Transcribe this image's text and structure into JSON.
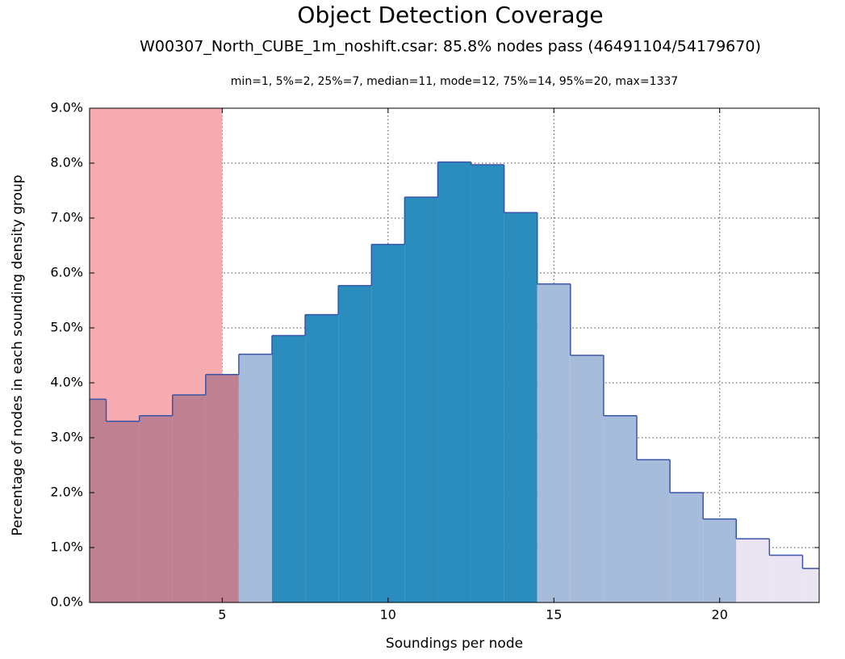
{
  "chart_data": {
    "type": "histogram",
    "title": "Object Detection Coverage",
    "subtitle": "W00307_North_CUBE_1m_noshift.csar: 85.8% nodes pass (46491104/54179670)",
    "annotation": "min=1, 5%=2, 25%=7, median=11, mode=12, 75%=14, 95%=20, max=1337",
    "x_label": "Soundings per node",
    "y_label": "Percentage of nodes in each sounding density group",
    "bins": [
      0.5,
      1.5,
      2.5,
      3.5,
      4.5,
      5.5,
      6.5,
      7.5,
      8.5,
      9.5,
      10.5,
      11.5,
      12.5,
      13.5,
      14.5,
      15.5,
      16.5,
      17.5,
      18.5,
      19.5,
      20.5,
      21.5,
      22.5,
      23.5
    ],
    "values": [
      3.7,
      3.3,
      3.4,
      3.78,
      4.15,
      4.52,
      4.86,
      5.24,
      5.77,
      6.52,
      7.38,
      8.02,
      7.97,
      7.1,
      5.8,
      4.5,
      3.4,
      2.6,
      2.0,
      1.52,
      1.16,
      0.86,
      0.62
    ],
    "colors": [
      "#bf8191",
      "#bf8191",
      "#bf8191",
      "#bf8191",
      "#bf8191",
      "#a7bcdb",
      "#2b8cbe",
      "#2b8cbe",
      "#2b8cbe",
      "#2b8cbe",
      "#2b8cbe",
      "#2b8cbe",
      "#2b8cbe",
      "#2b8cbe",
      "#a7bcdb",
      "#a7bcdb",
      "#a7bcdb",
      "#a7bcdb",
      "#a7bcdb",
      "#a7bcdb",
      "#ebe4f2",
      "#ebe4f2",
      "#ebe4f2"
    ],
    "edge_color": "#3a55a8",
    "highlight": {
      "range": [
        1,
        5
      ],
      "color": "#f6abb1"
    },
    "xlim": [
      1,
      23
    ],
    "ylim": [
      0,
      9
    ],
    "xticks": [
      5,
      10,
      15,
      20
    ],
    "yticks": [
      {
        "value": 0,
        "label": "0.0%"
      },
      {
        "value": 1,
        "label": "1.0%"
      },
      {
        "value": 2,
        "label": "2.0%"
      },
      {
        "value": 3,
        "label": "3.0%"
      },
      {
        "value": 4,
        "label": "4.0%"
      },
      {
        "value": 5,
        "label": "5.0%"
      },
      {
        "value": 6,
        "label": "6.0%"
      },
      {
        "value": 7,
        "label": "7.0%"
      },
      {
        "value": 8,
        "label": "8.0%"
      },
      {
        "value": 9,
        "label": "9.0%"
      }
    ],
    "grid": true
  }
}
